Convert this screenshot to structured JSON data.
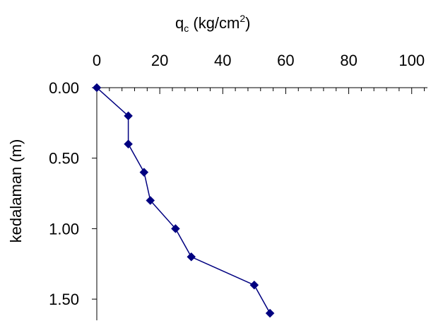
{
  "chart_data": {
    "type": "line",
    "title": "",
    "xlabel": {
      "base": "q",
      "subscript": "c",
      "middle": " (kg/cm",
      "superscript": "2",
      "end": ")"
    },
    "ylabel": "kedalaman (m)",
    "x_axis_position": "top",
    "y_axis_inverted": true,
    "xlim": [
      0,
      105
    ],
    "ylim": [
      0,
      1.65
    ],
    "x_ticks": [
      0,
      20,
      40,
      60,
      80,
      100
    ],
    "x_tick_labels": [
      "0",
      "20",
      "40",
      "60",
      "80",
      "100"
    ],
    "x_minor_step": 4,
    "y_ticks": [
      0,
      0.5,
      1.0,
      1.5
    ],
    "y_tick_labels": [
      "0.00",
      "0.50",
      "1.00",
      "1.50"
    ],
    "grid": false,
    "legend": false,
    "series": [
      {
        "color": "#000080",
        "marker": "diamond",
        "points": [
          {
            "x": 0,
            "y": 0.0
          },
          {
            "x": 10,
            "y": 0.2
          },
          {
            "x": 10,
            "y": 0.4
          },
          {
            "x": 15,
            "y": 0.6
          },
          {
            "x": 17,
            "y": 0.8
          },
          {
            "x": 25,
            "y": 1.0
          },
          {
            "x": 30,
            "y": 1.2
          },
          {
            "x": 50,
            "y": 1.4
          },
          {
            "x": 55,
            "y": 1.6
          }
        ]
      }
    ]
  }
}
